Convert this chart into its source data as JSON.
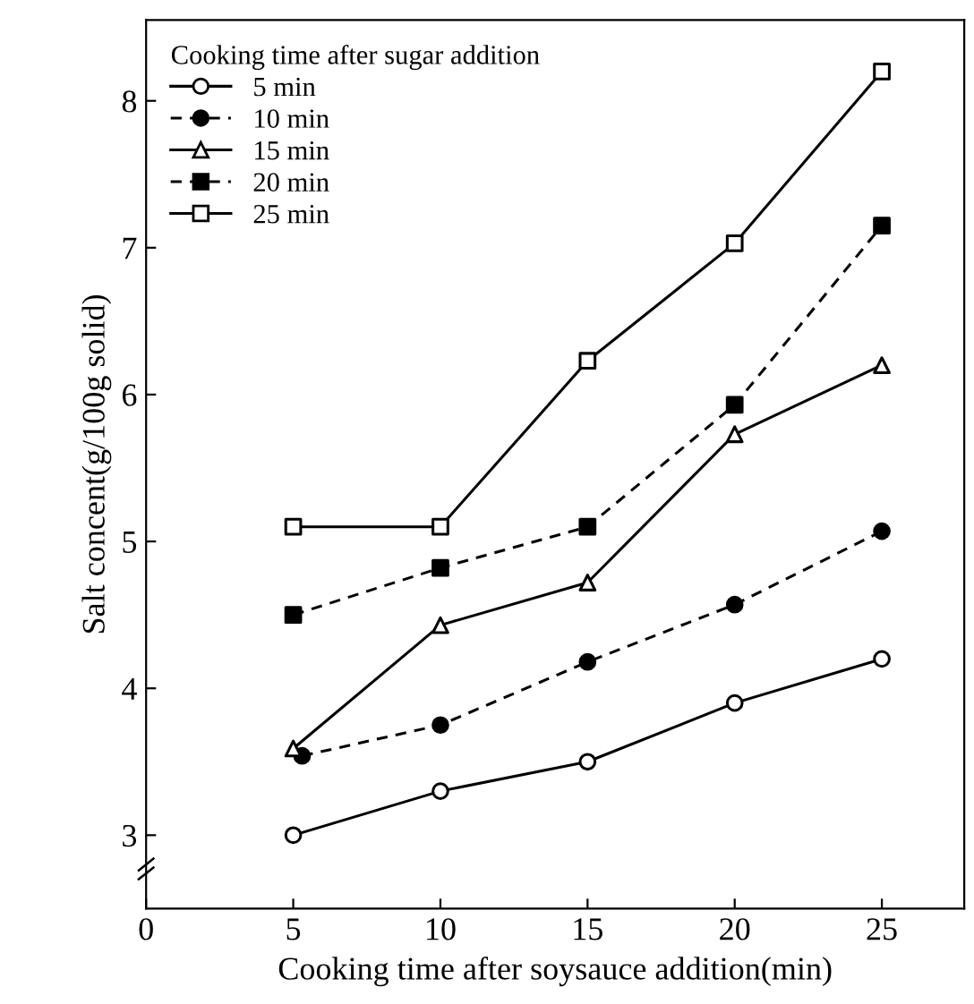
{
  "chart_data": {
    "type": "line",
    "xlabel": "Cooking time after soysauce addition(min)",
    "ylabel": "Salt concent(g/100g solid)",
    "legend_title": "Cooking time after sugar addition",
    "legend": "top left",
    "grid": false,
    "xlim": [
      0,
      27.8
    ],
    "xticks": [
      0,
      5,
      10,
      15,
      20,
      25
    ],
    "ylim": [
      2.5,
      8.55
    ],
    "yticks": [
      3,
      4,
      5,
      6,
      7,
      8
    ],
    "series": [
      {
        "name": "5 min",
        "color": "#000000",
        "marker": "circle",
        "colors": [
          "#ffffff",
          "#ffffff",
          "#ffffff",
          "#ffffff",
          "#ffffff"
        ],
        "line_style": "solid",
        "x": [
          5,
          10,
          15,
          20,
          25
        ],
        "values": [
          3.0,
          3.3,
          3.5,
          3.9,
          4.2
        ]
      },
      {
        "name": "10 min",
        "color": "#000000",
        "marker": "circle",
        "colors": [
          "#000000",
          "#000000",
          "#000000",
          "#000000",
          "#000000"
        ],
        "line_style": "dashed",
        "x": [
          5.3,
          10,
          15,
          20,
          25
        ],
        "values": [
          3.54,
          3.75,
          4.18,
          4.57,
          5.07
        ]
      },
      {
        "name": "15 min",
        "color": "#000000",
        "marker": "triangle",
        "colors": [
          "#ffffff",
          "#ffffff",
          "#ffffff",
          "#ffffff",
          "#ffffff"
        ],
        "line_style": "solid",
        "x": [
          5,
          10,
          15,
          20,
          25
        ],
        "values": [
          3.59,
          4.43,
          4.72,
          5.73,
          6.2
        ]
      },
      {
        "name": "20 min",
        "color": "#000000",
        "marker": "square",
        "colors": [
          "#000000",
          "#000000",
          "#000000",
          "#000000",
          "#000000"
        ],
        "line_style": "dashed",
        "x": [
          5,
          10,
          15,
          20,
          25
        ],
        "values": [
          4.5,
          4.82,
          5.1,
          5.93,
          7.15
        ]
      },
      {
        "name": "25 min",
        "color": "#000000",
        "marker": "square",
        "colors": [
          "#ffffff",
          "#ffffff",
          "#ffffff",
          "#ffffff",
          "#ffffff"
        ],
        "line_style": "solid",
        "x": [
          5,
          10,
          15,
          20,
          25
        ],
        "values": [
          5.1,
          5.1,
          6.23,
          7.03,
          8.2
        ]
      }
    ]
  }
}
